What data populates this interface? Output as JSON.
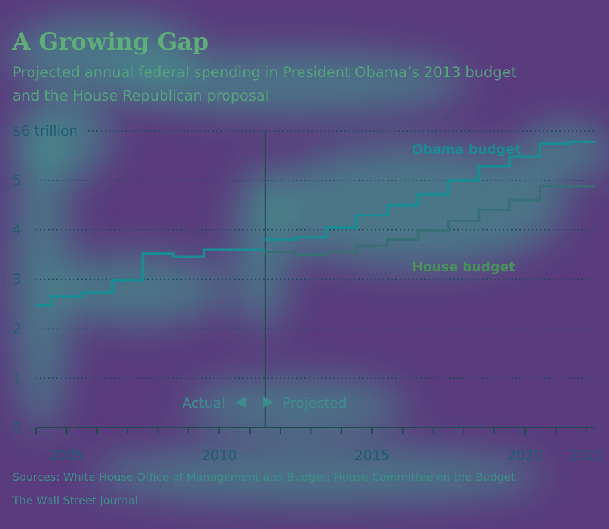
{
  "colors": {
    "background": "#5a3c7e",
    "glow": "#3fa68f",
    "obama": "#1b8b94",
    "house": "#3a6f78",
    "grid": "#1e4b5c",
    "divider": "#1e4a4c"
  },
  "chart_data": {
    "type": "line",
    "title": "A Growing Gap",
    "subtitle_lines": [
      "Projected annual federal spending in President Obama’s 2013 budget",
      "and the House Republican proposal"
    ],
    "ylabel": "",
    "xlabel": "",
    "ylim": [
      0,
      6
    ],
    "xlim": [
      2004,
      2022.3
    ],
    "y_ticks": [
      {
        "value": 0,
        "label": "0"
      },
      {
        "value": 1,
        "label": "1"
      },
      {
        "value": 2,
        "label": "2"
      },
      {
        "value": 3,
        "label": "3"
      },
      {
        "value": 4,
        "label": "4"
      },
      {
        "value": 5,
        "label": "5"
      },
      {
        "value": 6,
        "label": "$6 trillion"
      }
    ],
    "x_tick_labels": [
      {
        "value": 2005,
        "label": "2005"
      },
      {
        "value": 2010,
        "label": "2010"
      },
      {
        "value": 2015,
        "label": "2015"
      },
      {
        "value": 2020,
        "label": "2020"
      },
      {
        "value": 2022,
        "label": "2022"
      }
    ],
    "x_minor_ticks": [
      2004,
      2005,
      2006,
      2007,
      2008,
      2009,
      2010,
      2011,
      2012,
      2013,
      2014,
      2015,
      2016,
      2017,
      2018,
      2019,
      2020,
      2021,
      2022
    ],
    "grid": "horizontal dotted",
    "step": true,
    "divider_year": 2011.5,
    "series": [
      {
        "name": "Actual",
        "label_visible": false,
        "x": [
          2004,
          2005,
          2006,
          2007,
          2008,
          2009,
          2010,
          2011
        ],
        "values": [
          2.47,
          2.65,
          2.73,
          2.98,
          3.52,
          3.46,
          3.6,
          3.6
        ]
      },
      {
        "name": "Obama budget",
        "label_visible": true,
        "x": [
          2012,
          2013,
          2014,
          2015,
          2016,
          2017,
          2018,
          2019,
          2020,
          2021,
          2022
        ],
        "values": [
          3.8,
          3.85,
          4.05,
          4.3,
          4.5,
          4.72,
          5.0,
          5.28,
          5.48,
          5.75,
          5.78
        ]
      },
      {
        "name": "House budget",
        "label_visible": true,
        "x": [
          2012,
          2013,
          2014,
          2015,
          2016,
          2017,
          2018,
          2019,
          2020,
          2021,
          2022
        ],
        "values": [
          3.55,
          3.5,
          3.55,
          3.68,
          3.8,
          3.98,
          4.18,
          4.4,
          4.6,
          4.88,
          4.88
        ]
      }
    ],
    "annotations": {
      "actual": "Actual",
      "projected": "Projected"
    },
    "sources": "Sources: White House Office of Management and Budget; House Committee on the Budget",
    "credit": "The Wall Street Journal"
  }
}
